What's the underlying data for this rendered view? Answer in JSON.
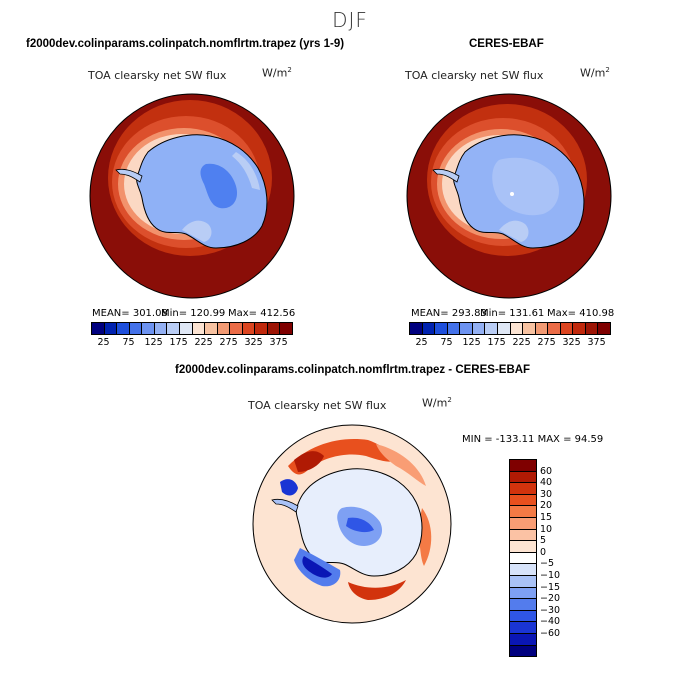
{
  "title": "DJF",
  "chart_data": [
    {
      "type": "heatmap",
      "projection": "south-polar-stereographic",
      "title": "f2000dev.colinparams.colinpatch.nomflrtm.trapez (yrs 1-9)",
      "variable": "TOA clearsky net SW flux",
      "units_text": "W/m",
      "units_exp": "2",
      "stats": {
        "mean": "MEAN= 301.08",
        "min": "Min= 120.99",
        "max": "Max= 412.56"
      },
      "levels": [
        25,
        50,
        75,
        100,
        125,
        150,
        175,
        200,
        225,
        250,
        275,
        300,
        325,
        350,
        375
      ],
      "tick_labels": [
        "25",
        "75",
        "125",
        "175",
        "225",
        "275",
        "325",
        "375"
      ],
      "colors": [
        "#00007f",
        "#0022b0",
        "#1e4fdc",
        "#4472ea",
        "#6d93f1",
        "#93b0f3",
        "#b9cdf5",
        "#dfe7f5",
        "#fbe3d2",
        "#f7c2a1",
        "#f29a73",
        "#eb6c47",
        "#dc4520",
        "#c0280c",
        "#9d1505",
        "#7f0000"
      ],
      "features": {
        "ocean_color": "#8a0e08",
        "ring_colors": [
          "#d6432a",
          "#f2926c",
          "#fbd8c3"
        ],
        "land_color": "#8fb1f6",
        "interior_color": "#4f80f0"
      }
    },
    {
      "type": "heatmap",
      "projection": "south-polar-stereographic",
      "title": "CERES-EBAF",
      "variable": "TOA clearsky net SW flux",
      "units_text": "W/m",
      "units_exp": "2",
      "stats": {
        "mean": "MEAN= 293.83",
        "min": "Min= 131.61",
        "max": "Max= 410.98"
      },
      "levels": [
        25,
        50,
        75,
        100,
        125,
        150,
        175,
        200,
        225,
        250,
        275,
        300,
        325,
        350,
        375
      ],
      "tick_labels": [
        "25",
        "75",
        "125",
        "175",
        "225",
        "275",
        "325",
        "375"
      ],
      "colors": [
        "#00007f",
        "#0022b0",
        "#1e4fdc",
        "#4472ea",
        "#6d93f1",
        "#93b0f3",
        "#b9cdf5",
        "#dfe7f5",
        "#fbe3d2",
        "#f7c2a1",
        "#f29a73",
        "#eb6c47",
        "#dc4520",
        "#c0280c",
        "#9d1505",
        "#7f0000"
      ],
      "features": {
        "ocean_color": "#8a0e08",
        "ring_colors": [
          "#d6432a",
          "#f2926c",
          "#fbd8c3"
        ],
        "land_color": "#93b3f6",
        "interior_color": "#8fb1f6"
      }
    },
    {
      "type": "heatmap",
      "projection": "south-polar-stereographic",
      "title": "f2000dev.colinparams.colinpatch.nomflrtm.trapez - CERES-EBAF",
      "variable": "TOA clearsky net SW flux",
      "units_text": "W/m",
      "units_exp": "2",
      "stats_text": "MIN = -133.11 MAX =  94.59",
      "levels": [
        60,
        40,
        30,
        20,
        15,
        10,
        5,
        0,
        -5,
        -10,
        -15,
        -20,
        -30,
        -40,
        -60
      ],
      "level_labels": [
        "60",
        "40",
        "30",
        "20",
        "15",
        "10",
        "5",
        "0",
        "−5",
        "−10",
        "−15",
        "−20",
        "−30",
        "−40",
        "−60"
      ],
      "colors": [
        "#7f0000",
        "#b01a04",
        "#d2330d",
        "#e8501e",
        "#f47a45",
        "#f99d74",
        "#fbc2a4",
        "#fde4d2",
        "#ffffff",
        "#d7e3fa",
        "#a9c2f7",
        "#7ea0f3",
        "#537ced",
        "#2f56e6",
        "#1a35d4",
        "#0a16b5",
        "#00007f"
      ],
      "features": {
        "background_color": "#fde4d2",
        "land_color": "#e7eefc"
      }
    }
  ]
}
